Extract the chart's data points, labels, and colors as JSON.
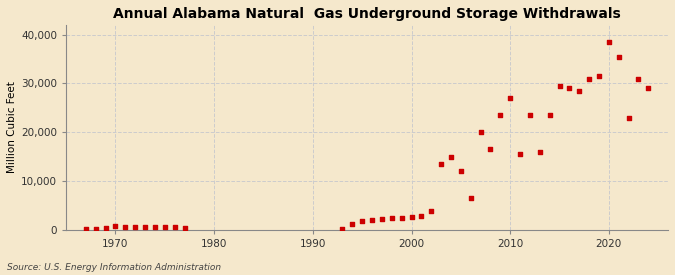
{
  "title": "Annual Alabama Natural  Gas Underground Storage Withdrawals",
  "ylabel": "Million Cubic Feet",
  "source": "Source: U.S. Energy Information Administration",
  "background_color": "#f5e8cc",
  "plot_background_color": "#f5e8cc",
  "marker_color": "#cc0000",
  "years": [
    1967,
    1968,
    1969,
    1970,
    1971,
    1972,
    1973,
    1974,
    1975,
    1976,
    1977,
    1993,
    1994,
    1995,
    1996,
    1997,
    1998,
    1999,
    2000,
    2001,
    2002,
    2003,
    2004,
    2005,
    2006,
    2007,
    2008,
    2009,
    2010,
    2011,
    2012,
    2013,
    2014,
    2015,
    2016,
    2017,
    2018,
    2019,
    2020,
    2021,
    2022,
    2023,
    2024
  ],
  "values": [
    200,
    250,
    400,
    700,
    500,
    600,
    600,
    500,
    500,
    500,
    450,
    100,
    1200,
    1800,
    2000,
    2200,
    2400,
    2500,
    2600,
    2800,
    3800,
    13500,
    15000,
    12000,
    6500,
    20000,
    16500,
    23500,
    27000,
    15500,
    23500,
    16000,
    23500,
    29500,
    29000,
    28500,
    31000,
    31500,
    38500,
    35500,
    23000,
    31000,
    29000
  ],
  "xlim": [
    1965,
    2026
  ],
  "ylim": [
    0,
    42000
  ],
  "yticks": [
    0,
    10000,
    20000,
    30000,
    40000
  ],
  "xticks": [
    1970,
    1980,
    1990,
    2000,
    2010,
    2020
  ],
  "grid_color": "#cccccc",
  "title_fontsize": 10,
  "label_fontsize": 7.5,
  "tick_fontsize": 7.5,
  "source_fontsize": 6.5
}
